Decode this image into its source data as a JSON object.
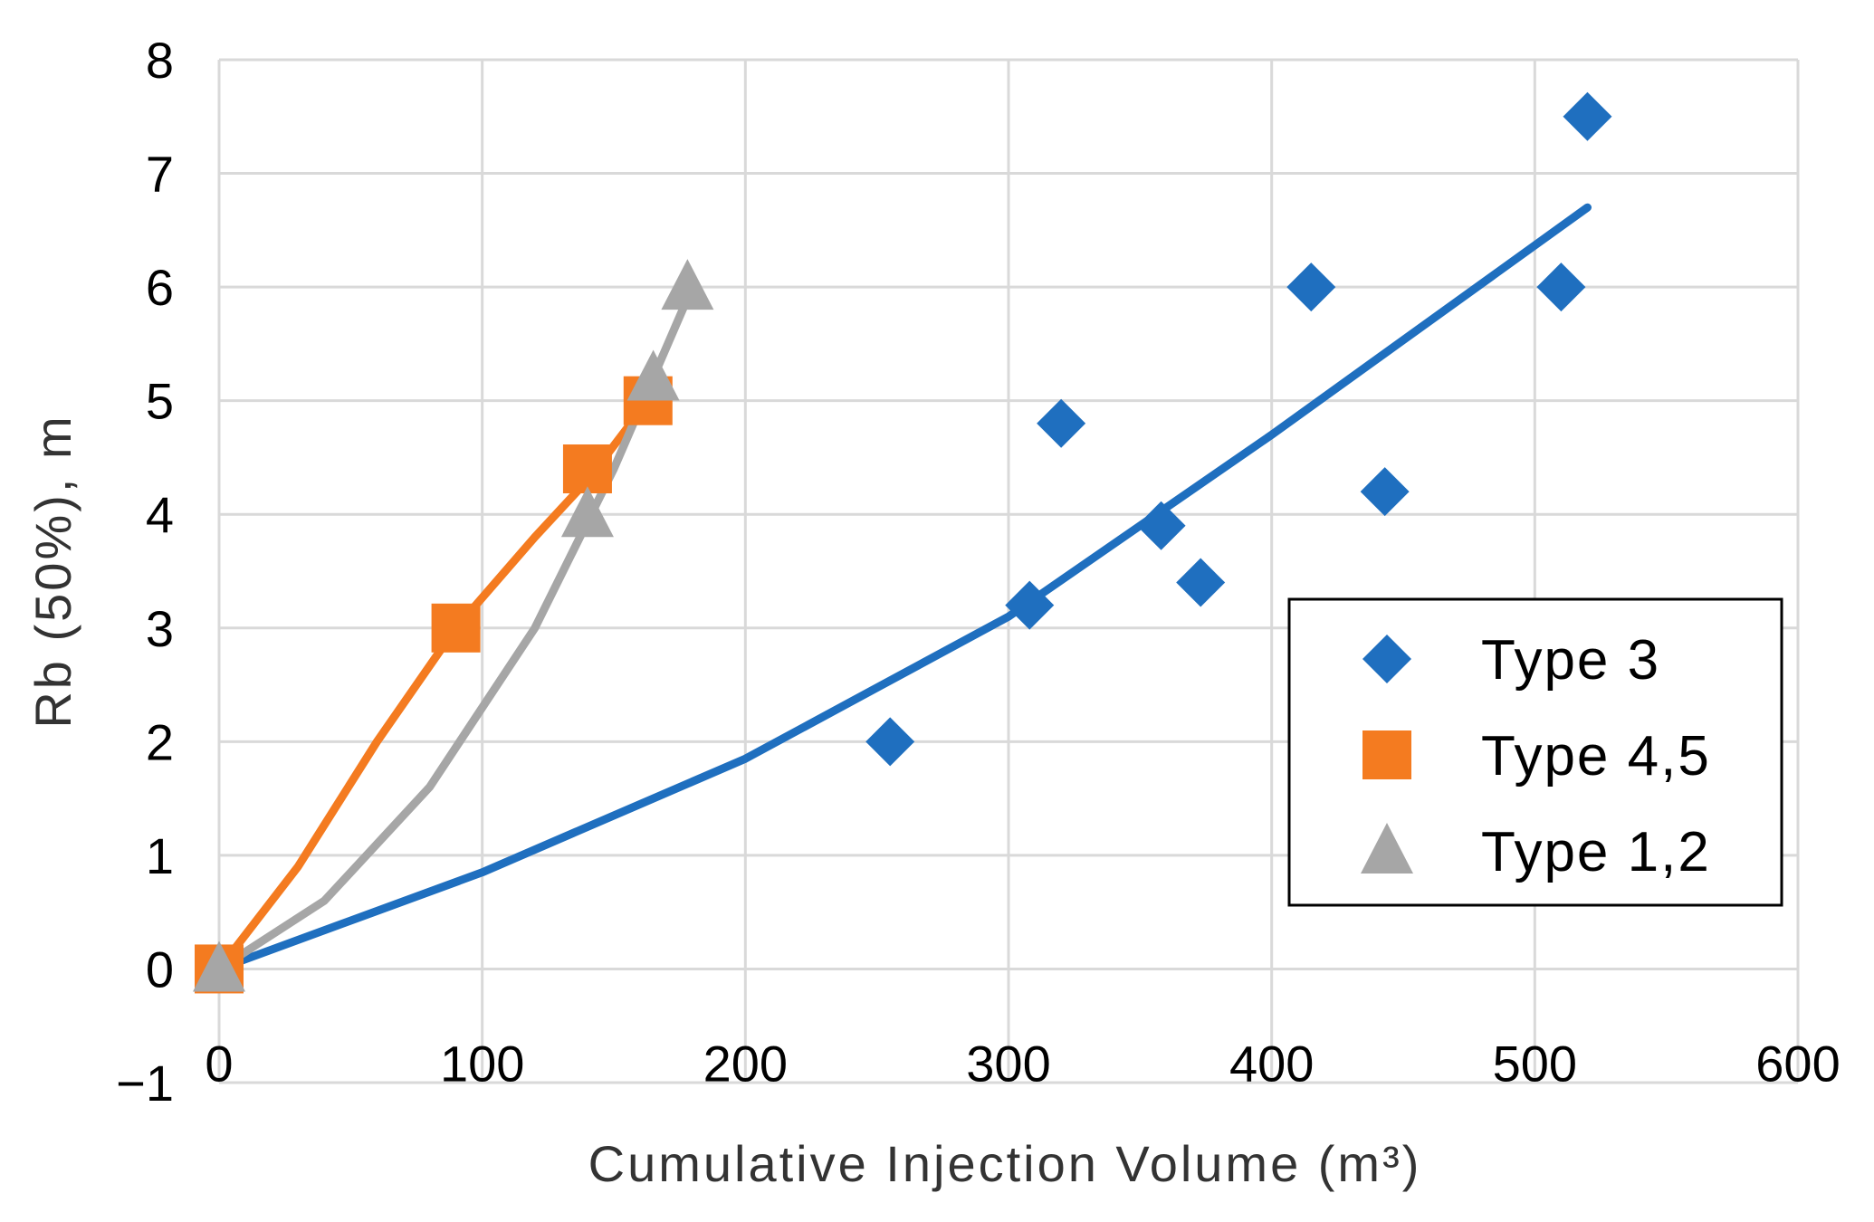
{
  "chart_data": {
    "type": "scatter",
    "title": "",
    "xlabel": "Cumulative Injection Volume (m³)",
    "ylabel": "Rb (50%), m",
    "xlim": [
      0,
      600
    ],
    "ylim": [
      -1,
      8
    ],
    "xticks": [
      0,
      100,
      200,
      300,
      400,
      500,
      600
    ],
    "yticks": [
      -1,
      0,
      1,
      2,
      3,
      4,
      5,
      6,
      7,
      8
    ],
    "xtick_labels": [
      "0",
      "100",
      "200",
      "300",
      "400",
      "500",
      "600"
    ],
    "ytick_labels": [
      "−1",
      "0",
      "1",
      "2",
      "3",
      "4",
      "5",
      "6",
      "7",
      "8"
    ],
    "grid": true,
    "legend_position": "right",
    "series": [
      {
        "name": "Type 3",
        "marker": "diamond",
        "color": "#1f6fbf",
        "points": [
          [
            0,
            0
          ],
          [
            255,
            2.0
          ],
          [
            308,
            3.2
          ],
          [
            320,
            4.8
          ],
          [
            358,
            3.9
          ],
          [
            373,
            3.4
          ],
          [
            415,
            6.0
          ],
          [
            443,
            4.2
          ],
          [
            510,
            6.0
          ],
          [
            520,
            7.5
          ]
        ],
        "trend": [
          [
            0,
            0
          ],
          [
            100,
            0.85
          ],
          [
            200,
            1.85
          ],
          [
            300,
            3.1
          ],
          [
            400,
            4.7
          ],
          [
            520,
            6.7
          ]
        ]
      },
      {
        "name": "Type 4,5",
        "marker": "square",
        "color": "#f47b20",
        "points": [
          [
            0,
            0
          ],
          [
            90,
            3.0
          ],
          [
            140,
            4.4
          ],
          [
            163,
            5.0
          ]
        ],
        "trend": [
          [
            0,
            0
          ],
          [
            30,
            0.9
          ],
          [
            60,
            2.0
          ],
          [
            90,
            3.0
          ],
          [
            120,
            3.8
          ],
          [
            140,
            4.3
          ],
          [
            163,
            5.0
          ]
        ]
      },
      {
        "name": "Type 1,2",
        "marker": "triangle",
        "color": "#a6a6a6",
        "points": [
          [
            0,
            0
          ],
          [
            140,
            4.0
          ],
          [
            165,
            5.2
          ],
          [
            178,
            6.0
          ]
        ],
        "trend": [
          [
            0,
            0
          ],
          [
            40,
            0.6
          ],
          [
            80,
            1.6
          ],
          [
            120,
            3.0
          ],
          [
            150,
            4.4
          ],
          [
            178,
            5.9
          ]
        ]
      }
    ]
  }
}
